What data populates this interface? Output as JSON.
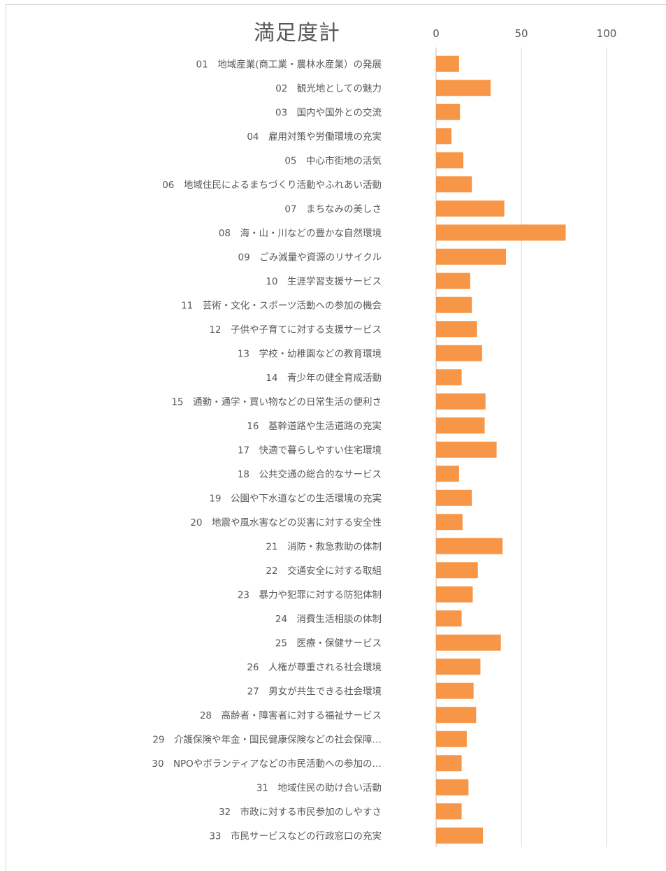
{
  "chart_data": {
    "type": "bar",
    "orientation": "horizontal",
    "title": "満足度計",
    "xlim": [
      0,
      100
    ],
    "ticks": [
      "0",
      "50",
      "100"
    ],
    "tick_values": [
      0,
      50,
      100
    ],
    "grid": true,
    "bar_color": "#f79646",
    "categories": [
      "01　地域産業(商工業・農林水産業）の発展",
      "02　観光地としての魅力",
      "03　国内や国外との交流",
      "04　雇用対策や労働環境の充実",
      "05　中心市街地の活気",
      "06　地域住民によるまちづくり活動やふれあい活動",
      "07　まちなみの美しさ",
      "08　海・山・川などの豊かな自然環境",
      "09　ごみ減量や資源のリサイクル",
      "10　生涯学習支援サービス",
      "11　芸術・文化・スポーツ活動への参加の機会",
      "12　子供や子育てに対する支援サービス",
      "13　学校・幼稚園などの教育環境",
      "14　青少年の健全育成活動",
      "15　通勤・通学・買い物などの日常生活の便利さ",
      "16　基幹道路や生活道路の充実",
      "17　快適で暮らしやすい住宅環境",
      "18　公共交通の総合的なサービス",
      "19　公園や下水道などの生活環境の充実",
      "20　地震や風水害などの災害に対する安全性",
      "21　消防・救急救助の体制",
      "22　交通安全に対する取組",
      "23　暴力や犯罪に対する防犯体制",
      "24　消費生活相談の体制",
      "25　医療・保健サービス",
      "26　人権が尊重される社会環境",
      "27　男女が共生できる社会環境",
      "28　高齢者・障害者に対する福祉サービス",
      "29　介護保険や年金・国民健康保険などの社会保障…",
      "30　NPOやボランティアなどの市民活動への参加の…",
      "31　地域住民の助け合い活動",
      "32　市政に対する市民参加のしやすさ",
      "33　市民サービスなどの行政窓口の充実"
    ],
    "values": [
      13.5,
      32,
      14,
      9,
      16,
      21,
      40,
      76,
      41,
      20,
      21,
      24,
      27,
      15,
      29,
      28.5,
      35.5,
      13.5,
      21,
      15.5,
      39,
      24.5,
      21.5,
      15,
      38,
      26,
      22,
      23.5,
      18,
      15,
      19,
      15,
      27.5
    ]
  }
}
